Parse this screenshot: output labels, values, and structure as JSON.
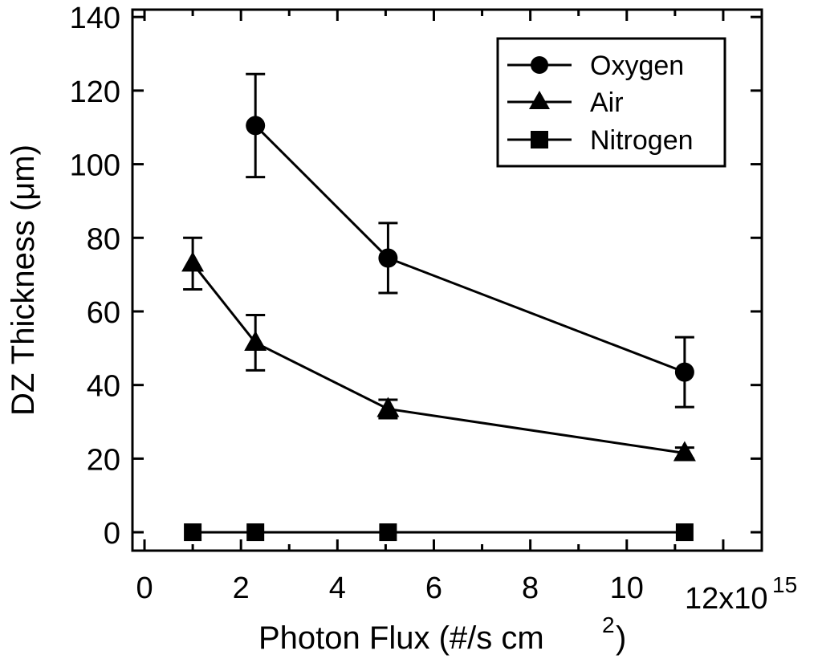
{
  "chart_data": {
    "type": "line",
    "xlabel": "Photon Flux (#/s cm",
    "xlabel_superscript": "2",
    "xlabel_suffix": ")",
    "ylabel": "DZ Thickness (μm)",
    "xlim": [
      -0.25,
      12.8
    ],
    "ylim": [
      -5,
      142
    ],
    "x_ticks": [
      0,
      2,
      4,
      6,
      8,
      10
    ],
    "x_tick_labels": [
      "0",
      "2",
      "4",
      "6",
      "8",
      "10"
    ],
    "x_exponent_label": "12x10",
    "x_exponent_superscript": "15",
    "y_ticks": [
      0,
      20,
      40,
      60,
      80,
      100,
      120,
      140
    ],
    "y_tick_labels": [
      "0",
      "20",
      "40",
      "60",
      "80",
      "100",
      "120",
      "140"
    ],
    "legend_position": "top-right",
    "series": [
      {
        "name": "Oxygen",
        "marker": "circle",
        "x": [
          2.3,
          5.05,
          11.2
        ],
        "y": [
          110.5,
          74.5,
          43.5
        ],
        "err": [
          14,
          9.5,
          9.5
        ]
      },
      {
        "name": "Air",
        "marker": "triangle",
        "x": [
          1.0,
          2.3,
          5.05,
          11.2
        ],
        "y": [
          73,
          51.5,
          33.5,
          21.5
        ],
        "err": [
          7,
          7.5,
          2.5,
          1.5
        ]
      },
      {
        "name": "Nitrogen",
        "marker": "square",
        "x": [
          1.0,
          2.3,
          5.05,
          11.2
        ],
        "y": [
          0,
          0,
          0,
          0
        ],
        "err": [
          0,
          0,
          0,
          0
        ]
      }
    ],
    "colors": {
      "line": "#000000",
      "background": "#ffffff"
    }
  }
}
